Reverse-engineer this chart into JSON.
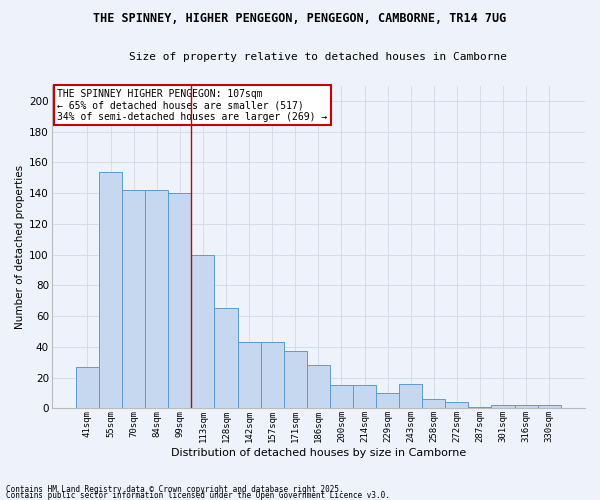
{
  "title_line1": "THE SPINNEY, HIGHER PENGEGON, PENGEGON, CAMBORNE, TR14 7UG",
  "title_line2": "Size of property relative to detached houses in Camborne",
  "xlabel": "Distribution of detached houses by size in Camborne",
  "ylabel": "Number of detached properties",
  "categories": [
    "41sqm",
    "55sqm",
    "70sqm",
    "84sqm",
    "99sqm",
    "113sqm",
    "128sqm",
    "142sqm",
    "157sqm",
    "171sqm",
    "186sqm",
    "200sqm",
    "214sqm",
    "229sqm",
    "243sqm",
    "258sqm",
    "272sqm",
    "287sqm",
    "301sqm",
    "316sqm",
    "330sqm"
  ],
  "values": [
    27,
    154,
    142,
    142,
    140,
    100,
    65,
    43,
    43,
    37,
    28,
    15,
    15,
    10,
    16,
    6,
    4,
    1,
    2,
    2,
    2
  ],
  "bar_color": "#c5d8ef",
  "bar_edge_color": "#5b9bd5",
  "bar_edge_width": 0.7,
  "grid_color": "#d0d8e8",
  "background_color": "#eef2fa",
  "ylim": [
    0,
    210
  ],
  "yticks": [
    0,
    20,
    40,
    60,
    80,
    100,
    120,
    140,
    160,
    180,
    200
  ],
  "red_line_x": 4.5,
  "annotation_text": "THE SPINNEY HIGHER PENGEGON: 107sqm\n← 65% of detached houses are smaller (517)\n34% of semi-detached houses are larger (269) →",
  "annotation_box_color": "#ffffff",
  "annotation_box_edge": "#cc0000",
  "footnote1": "Contains HM Land Registry data © Crown copyright and database right 2025.",
  "footnote2": "Contains public sector information licensed under the Open Government Licence v3.0."
}
